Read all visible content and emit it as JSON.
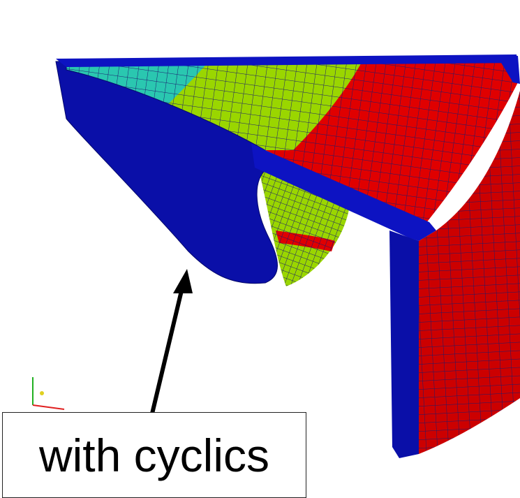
{
  "label": "with cyclics"
}
